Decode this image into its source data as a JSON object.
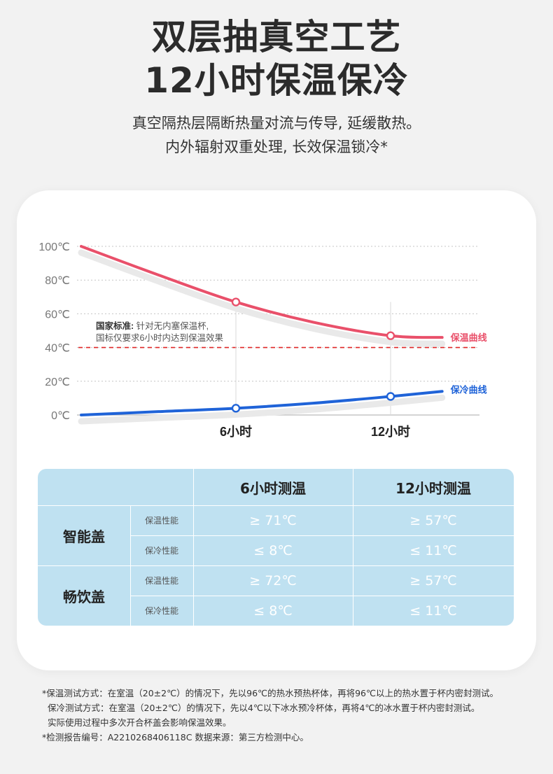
{
  "header": {
    "title_line1": "双层抽真空工艺",
    "title_line2": "12小时保温保冷",
    "subtitle_line1": "真空隔热层隔断热量对流与传导, 延缓散热。",
    "subtitle_line2": "内外辐射双重处理, 长效保温锁冷*"
  },
  "chart_data": {
    "type": "line",
    "x_ticks": [
      "6小时",
      "12小时"
    ],
    "y_ticks": [
      "100℃",
      "80℃",
      "60℃",
      "40℃",
      "20℃",
      "0℃"
    ],
    "ylim": [
      0,
      100
    ],
    "xlim_hours": [
      0,
      14
    ],
    "series": [
      {
        "name": "保温曲线",
        "color": "#e9506a",
        "x": [
          0,
          3,
          6,
          9,
          12,
          14
        ],
        "y": [
          100,
          83,
          67,
          55,
          47,
          46
        ],
        "markers": [
          {
            "x": 6,
            "y": 67
          },
          {
            "x": 12,
            "y": 47
          }
        ]
      },
      {
        "name": "保冷曲线",
        "color": "#1f63d8",
        "x": [
          0,
          3,
          6,
          9,
          12,
          14
        ],
        "y": [
          0,
          2,
          4,
          7,
          11,
          14
        ],
        "markers": [
          {
            "x": 6,
            "y": 4
          },
          {
            "x": 12,
            "y": 11
          }
        ]
      }
    ],
    "reference_line": {
      "y": 40,
      "color": "#e02727",
      "style": "dashed"
    },
    "annotation": {
      "bold": "国家标准:",
      "line1": "针对无内塞保温杯,",
      "line2": "国标仅要求6小时内达到保温效果"
    },
    "grid": "dotted horizontal"
  },
  "table": {
    "col_headers": [
      "6小时测温",
      "12小时测温"
    ],
    "groups": [
      {
        "name": "智能盖",
        "rows": [
          {
            "label": "保温性能",
            "v6": "≥ 71℃",
            "v12": "≥ 57℃"
          },
          {
            "label": "保冷性能",
            "v6": "≤ 8℃",
            "v12": "≤ 11℃"
          }
        ]
      },
      {
        "name": "畅饮盖",
        "rows": [
          {
            "label": "保温性能",
            "v6": "≥ 72℃",
            "v12": "≥ 57℃"
          },
          {
            "label": "保冷性能",
            "v6": "≤ 8℃",
            "v12": "≤ 11℃"
          }
        ]
      }
    ]
  },
  "notes": [
    "*保温测试方式：在室温（20±2℃）的情况下，先以96℃的热水预热杯体，再将96℃以上的热水置于杯内密封测试。",
    "保冷测试方式：在室温（20±2℃）的情况下，先以4℃以下冰水预冷杯体，再将4℃的冰水置于杯内密封测试。",
    "实际使用过程中多次开合杯盖会影响保温效果。",
    "*检测报告编号：A2210268406118C 数据来源：第三方检测中心。"
  ]
}
